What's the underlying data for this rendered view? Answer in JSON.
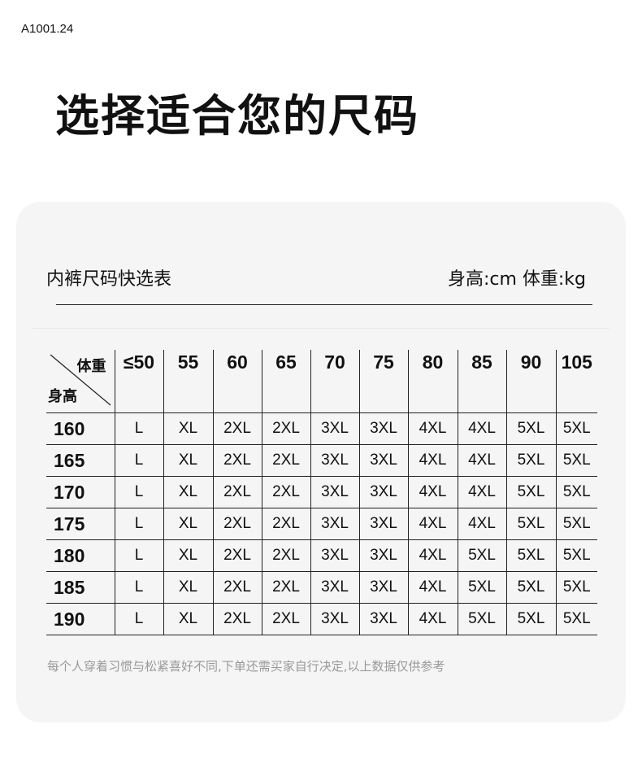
{
  "product_code": "A1001.24",
  "title": "选择适合您的尺码",
  "chart": {
    "subtitle": "内裤尺码快选表",
    "units": "身高:cm  体重:kg",
    "corner_top": "体重",
    "corner_bottom": "身高",
    "weights": [
      "≤50",
      "55",
      "60",
      "65",
      "70",
      "75",
      "80",
      "85",
      "90",
      "105"
    ],
    "rows": [
      {
        "height": "160",
        "sizes": [
          "L",
          "XL",
          "2XL",
          "2XL",
          "3XL",
          "3XL",
          "4XL",
          "4XL",
          "5XL",
          "5XL"
        ]
      },
      {
        "height": "165",
        "sizes": [
          "L",
          "XL",
          "2XL",
          "2XL",
          "3XL",
          "3XL",
          "4XL",
          "4XL",
          "5XL",
          "5XL"
        ]
      },
      {
        "height": "170",
        "sizes": [
          "L",
          "XL",
          "2XL",
          "2XL",
          "3XL",
          "3XL",
          "4XL",
          "4XL",
          "5XL",
          "5XL"
        ]
      },
      {
        "height": "175",
        "sizes": [
          "L",
          "XL",
          "2XL",
          "2XL",
          "3XL",
          "3XL",
          "4XL",
          "4XL",
          "5XL",
          "5XL"
        ]
      },
      {
        "height": "180",
        "sizes": [
          "L",
          "XL",
          "2XL",
          "2XL",
          "3XL",
          "3XL",
          "4XL",
          "5XL",
          "5XL",
          "5XL"
        ]
      },
      {
        "height": "185",
        "sizes": [
          "L",
          "XL",
          "2XL",
          "2XL",
          "3XL",
          "3XL",
          "4XL",
          "5XL",
          "5XL",
          "5XL"
        ]
      },
      {
        "height": "190",
        "sizes": [
          "L",
          "XL",
          "2XL",
          "2XL",
          "3XL",
          "3XL",
          "4XL",
          "5XL",
          "5XL",
          "5XL"
        ]
      }
    ],
    "note": "每个人穿着习惯与松紧喜好不同,下单还需买家自行决定,以上数据仅供参考"
  }
}
